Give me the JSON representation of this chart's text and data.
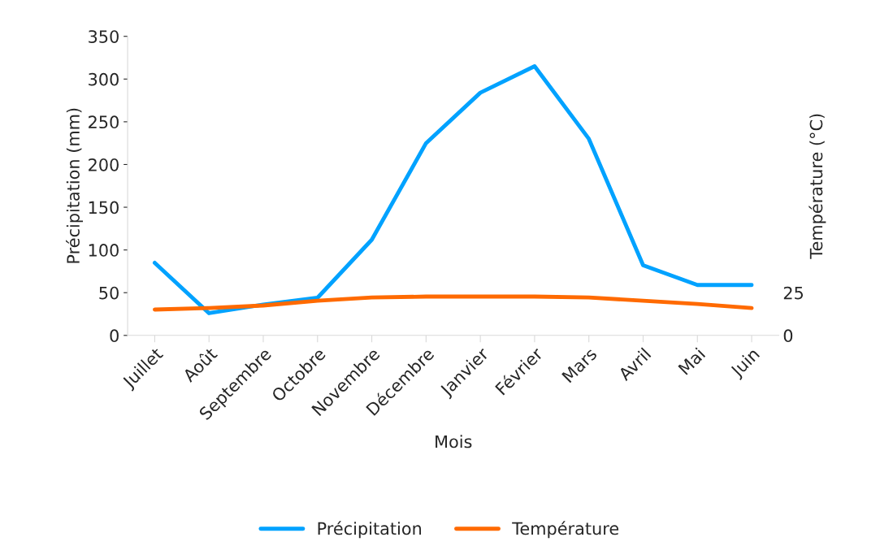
{
  "chart_data": {
    "type": "line",
    "xlabel": "Mois",
    "ylabel": "Précipitation (mm)",
    "y2label": "Température (°C)",
    "categories": [
      "Juillet",
      "Août",
      "Septembre",
      "Octobre",
      "Novembre",
      "Décembre",
      "Janvier",
      "Février",
      "Mars",
      "Avril",
      "Mai",
      "Juin"
    ],
    "series": [
      {
        "name": "Précipitation",
        "color": "#00a2ff",
        "values": [
          85,
          26,
          36,
          44,
          112,
          225,
          284,
          315,
          230,
          82,
          59,
          59
        ]
      },
      {
        "name": "Température",
        "color": "#ff6a00",
        "axis": "y2",
        "values": [
          15.1,
          16,
          17.5,
          20.3,
          22.2,
          22.7,
          22.7,
          22.7,
          22.2,
          20.3,
          18.4,
          16
        ]
      }
    ],
    "ylim": [
      0,
      350
    ],
    "yticks": [
      0,
      50,
      100,
      150,
      200,
      250,
      300,
      350
    ],
    "y2lim": [
      0,
      175
    ],
    "y2ticks": [
      0,
      25
    ],
    "grid": false,
    "legend": "bottom",
    "marker": "none",
    "line_style": "solid"
  }
}
